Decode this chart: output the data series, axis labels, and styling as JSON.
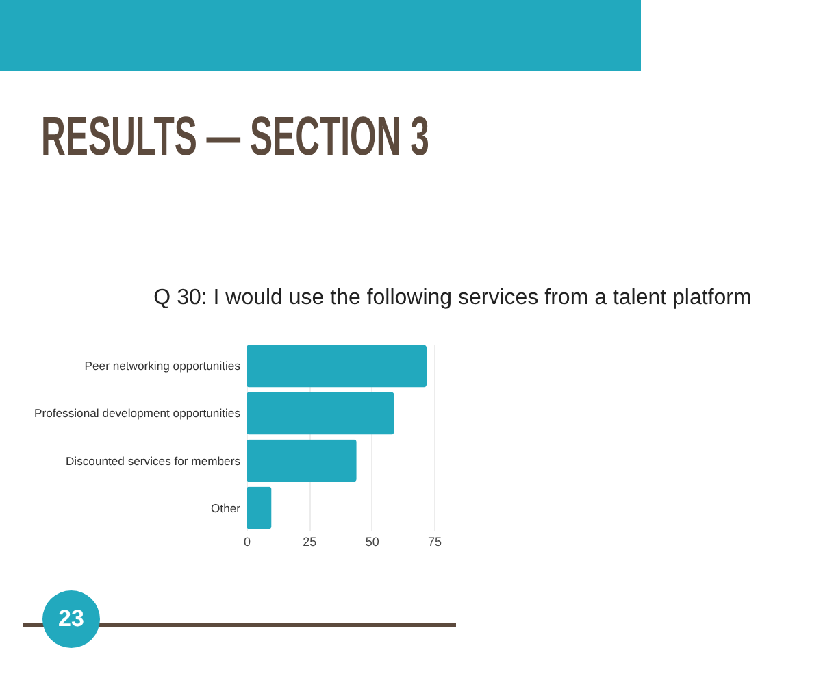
{
  "chart_data": {
    "type": "bar",
    "orientation": "horizontal",
    "title": "RESULTS — SECTION 3",
    "subtitle": "Q 30: I would use the following services from a talent platform",
    "categories": [
      "Peer networking opportunities",
      "Professional development opportunities",
      "Discounted services for members",
      "Other"
    ],
    "values": [
      72,
      59,
      44,
      10
    ],
    "color": "#22a9be",
    "xlim": [
      0,
      75
    ],
    "xticks": [
      0,
      25,
      50,
      75
    ],
    "grid": "x",
    "annotations": [
      "23"
    ]
  }
}
